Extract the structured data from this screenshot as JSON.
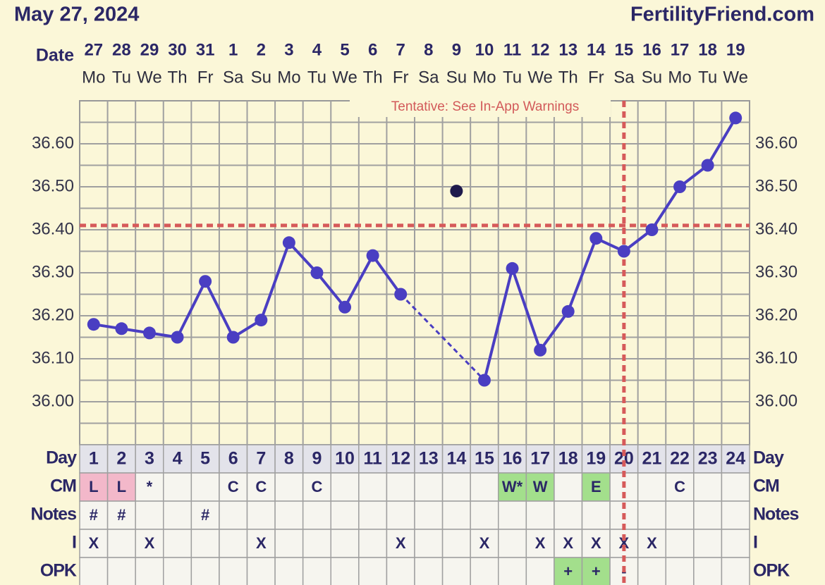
{
  "chart_data": {
    "type": "line",
    "title": "May 27, 2024",
    "source": "FertilityFriend.com",
    "date_label": "Date",
    "dates": [
      "27",
      "28",
      "29",
      "30",
      "31",
      "1",
      "2",
      "3",
      "4",
      "5",
      "6",
      "7",
      "8",
      "9",
      "10",
      "11",
      "12",
      "13",
      "14",
      "15",
      "16",
      "17",
      "18",
      "19"
    ],
    "weekdays": [
      "Mo",
      "Tu",
      "We",
      "Th",
      "Fr",
      "Sa",
      "Su",
      "Mo",
      "Tu",
      "We",
      "Th",
      "Fr",
      "Sa",
      "Su",
      "Mo",
      "Tu",
      "We",
      "Th",
      "Fr",
      "Sa",
      "Su",
      "Mo",
      "Tu",
      "We"
    ],
    "day_label": "Day",
    "x": [
      1,
      2,
      3,
      4,
      5,
      6,
      7,
      8,
      9,
      10,
      11,
      12,
      13,
      14,
      15,
      16,
      17,
      18,
      19,
      20,
      21,
      22,
      23,
      24
    ],
    "values": [
      36.18,
      36.17,
      36.16,
      36.15,
      36.28,
      36.15,
      36.19,
      36.37,
      36.3,
      36.22,
      36.34,
      36.25,
      null,
      null,
      36.05,
      36.31,
      36.12,
      36.21,
      36.38,
      36.35,
      36.4,
      36.5,
      36.55,
      36.66
    ],
    "discarded": [
      null,
      null,
      null,
      null,
      null,
      null,
      null,
      null,
      null,
      null,
      null,
      null,
      null,
      36.49,
      null,
      null,
      null,
      null,
      null,
      null,
      null,
      null,
      null,
      null
    ],
    "color": "#4a3ec2",
    "discarded_color": "#1e1a4c",
    "coverline": 36.41,
    "ovulation_day": 20,
    "marker_color": "#d65a5a",
    "annotation": "Tentative: See In-App Warnings",
    "ylim": [
      35.9,
      36.7
    ],
    "yticks": [
      {
        "value": 36.0,
        "label": "36.00"
      },
      {
        "value": 36.1,
        "label": "36.10"
      },
      {
        "value": 36.2,
        "label": "36.20"
      },
      {
        "value": 36.3,
        "label": "36.30"
      },
      {
        "value": 36.4,
        "label": "36.40"
      },
      {
        "value": 36.5,
        "label": "36.50"
      },
      {
        "value": 36.6,
        "label": "36.60"
      }
    ],
    "grid": true,
    "rows": [
      {
        "label": "CM",
        "cells": [
          "L",
          "L",
          "*",
          null,
          null,
          "C",
          "C",
          null,
          "C",
          null,
          null,
          null,
          null,
          null,
          null,
          "W*",
          "W",
          null,
          "E",
          null,
          null,
          "C",
          null,
          null
        ],
        "colors": [
          "#f3b8ca",
          "#f3b8ca",
          null,
          null,
          null,
          null,
          null,
          null,
          null,
          null,
          null,
          null,
          null,
          null,
          null,
          "#a3df8c",
          "#a3df8c",
          null,
          "#a3df8c",
          null,
          null,
          null,
          null,
          null
        ]
      },
      {
        "label": "Notes",
        "cells": [
          "#",
          "#",
          null,
          null,
          "#",
          null,
          null,
          null,
          null,
          null,
          null,
          null,
          null,
          null,
          null,
          null,
          null,
          null,
          null,
          null,
          null,
          null,
          null,
          null
        ],
        "colors": [
          null,
          null,
          null,
          null,
          null,
          null,
          null,
          null,
          null,
          null,
          null,
          null,
          null,
          null,
          null,
          null,
          null,
          null,
          null,
          null,
          null,
          null,
          null,
          null
        ]
      },
      {
        "label": "I",
        "cells": [
          "X",
          null,
          "X",
          null,
          null,
          null,
          "X",
          null,
          null,
          null,
          null,
          "X",
          null,
          null,
          "X",
          null,
          "X",
          "X",
          "X",
          "X",
          "X",
          null,
          null,
          null
        ],
        "colors": [
          null,
          null,
          null,
          null,
          null,
          null,
          null,
          null,
          null,
          null,
          null,
          null,
          null,
          null,
          null,
          null,
          null,
          null,
          null,
          null,
          null,
          null,
          null,
          null
        ]
      },
      {
        "label": "OPK",
        "cells": [
          null,
          null,
          null,
          null,
          null,
          null,
          null,
          null,
          null,
          null,
          null,
          null,
          null,
          null,
          null,
          null,
          null,
          "+",
          "+",
          "-",
          null,
          null,
          null,
          null
        ],
        "colors": [
          null,
          null,
          null,
          null,
          null,
          null,
          null,
          null,
          null,
          null,
          null,
          null,
          null,
          null,
          null,
          null,
          null,
          "#a3df8c",
          "#a3df8c",
          null,
          null,
          null,
          null,
          null
        ]
      }
    ]
  }
}
